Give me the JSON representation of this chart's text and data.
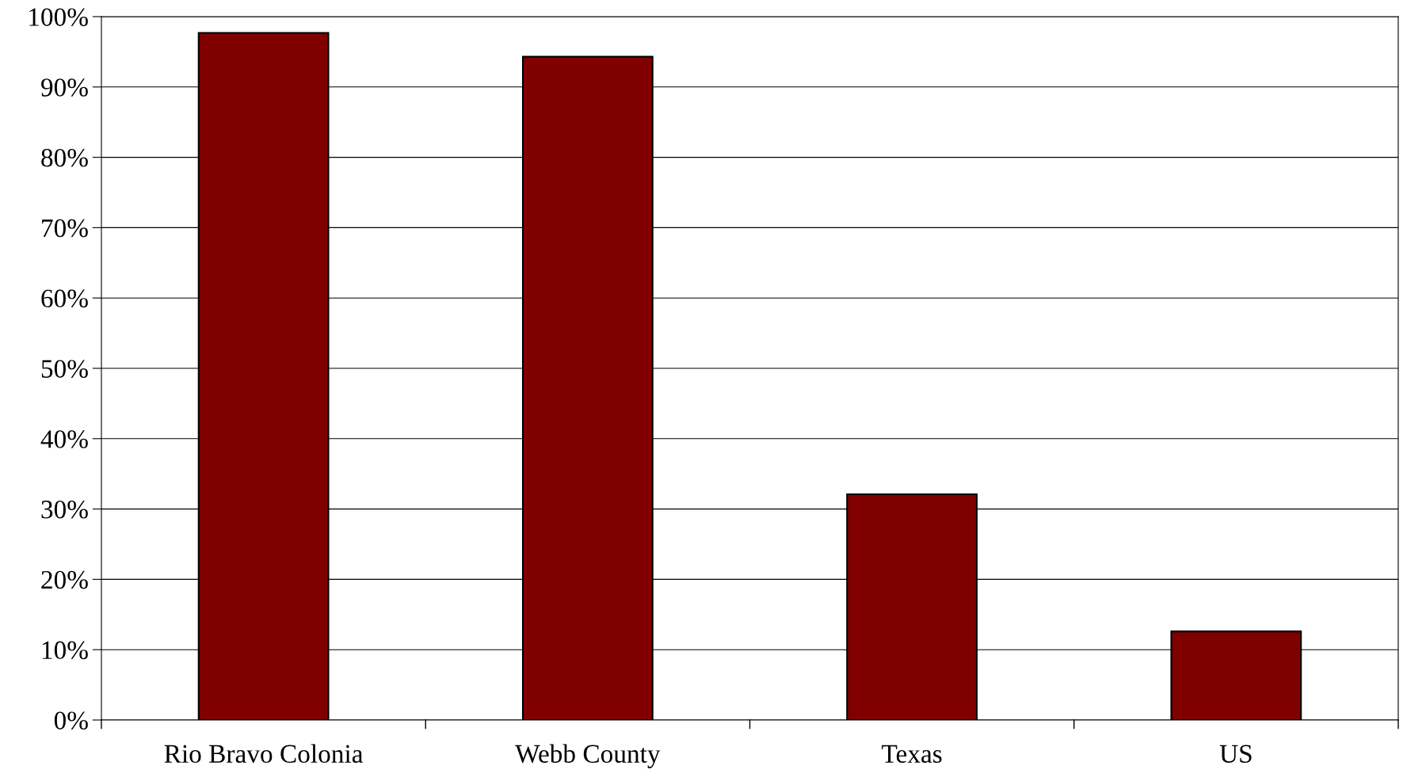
{
  "chart_data": {
    "type": "bar",
    "categories": [
      "Rio Bravo Colonia",
      "Webb County",
      "Texas",
      "US"
    ],
    "values": [
      97.7,
      94.3,
      32.1,
      12.6
    ],
    "color": "#800000",
    "ylim": [
      0,
      100
    ],
    "yticks": [
      {
        "value": 0,
        "label": "0%"
      },
      {
        "value": 10,
        "label": "10%"
      },
      {
        "value": 20,
        "label": "20%"
      },
      {
        "value": 30,
        "label": "30%"
      },
      {
        "value": 40,
        "label": "40%"
      },
      {
        "value": 50,
        "label": "50%"
      },
      {
        "value": 60,
        "label": "60%"
      },
      {
        "value": 70,
        "label": "70%"
      },
      {
        "value": 80,
        "label": "80%"
      },
      {
        "value": 90,
        "label": "90%"
      },
      {
        "value": 100,
        "label": "100%"
      }
    ],
    "grid": "y",
    "legend": false
  }
}
